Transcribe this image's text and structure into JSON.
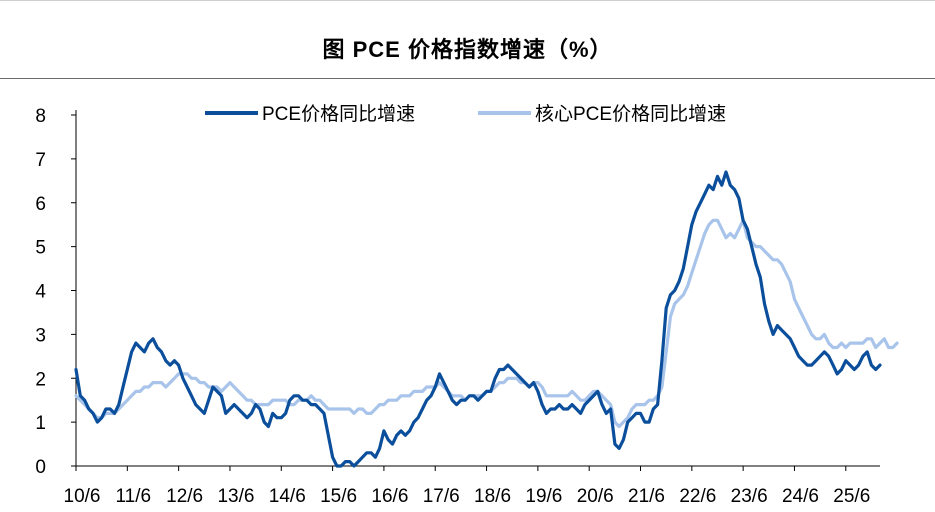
{
  "title": "图   PCE 价格指数增速（%）",
  "chart_data": {
    "type": "line",
    "title": "图   PCE 价格指数增速（%）",
    "xlabel": "",
    "ylabel": "",
    "ylim": [
      0,
      8
    ],
    "yticks": [
      "0",
      "1",
      "2",
      "3",
      "4",
      "5",
      "6",
      "7",
      "8"
    ],
    "xticks": [
      "10/6",
      "11/6",
      "12/6",
      "13/6",
      "14/6",
      "15/6",
      "16/6",
      "17/6",
      "18/6",
      "19/6",
      "20/6",
      "21/6",
      "22/6",
      "23/6",
      "24/6",
      "25/6"
    ],
    "x_start": "2010-06",
    "legend_position": "top-center",
    "grid": false,
    "series": [
      {
        "name": "PCE价格同比增速",
        "color": "#0b4f9c",
        "values": [
          2.2,
          1.6,
          1.5,
          1.3,
          1.2,
          1.0,
          1.1,
          1.3,
          1.3,
          1.2,
          1.4,
          1.8,
          2.2,
          2.6,
          2.8,
          2.7,
          2.6,
          2.8,
          2.9,
          2.7,
          2.6,
          2.4,
          2.3,
          2.4,
          2.3,
          2.0,
          1.8,
          1.6,
          1.4,
          1.3,
          1.2,
          1.5,
          1.8,
          1.7,
          1.6,
          1.2,
          1.3,
          1.4,
          1.3,
          1.2,
          1.1,
          1.2,
          1.4,
          1.3,
          1.0,
          0.9,
          1.2,
          1.1,
          1.1,
          1.2,
          1.5,
          1.6,
          1.6,
          1.5,
          1.5,
          1.4,
          1.4,
          1.3,
          1.2,
          0.7,
          0.2,
          0.0,
          0.0,
          0.1,
          0.1,
          0.0,
          0.1,
          0.2,
          0.3,
          0.3,
          0.2,
          0.4,
          0.8,
          0.6,
          0.5,
          0.7,
          0.8,
          0.7,
          0.8,
          1.0,
          1.1,
          1.3,
          1.5,
          1.6,
          1.8,
          2.1,
          1.9,
          1.7,
          1.5,
          1.4,
          1.5,
          1.5,
          1.6,
          1.6,
          1.5,
          1.6,
          1.7,
          1.7,
          2.0,
          2.2,
          2.2,
          2.3,
          2.2,
          2.1,
          2.0,
          1.9,
          1.8,
          1.9,
          1.7,
          1.4,
          1.2,
          1.3,
          1.3,
          1.4,
          1.3,
          1.3,
          1.4,
          1.3,
          1.2,
          1.4,
          1.5,
          1.6,
          1.7,
          1.4,
          1.2,
          1.3,
          0.5,
          0.4,
          0.6,
          1.0,
          1.1,
          1.2,
          1.2,
          1.0,
          1.0,
          1.3,
          1.4,
          2.4,
          3.6,
          3.9,
          4.0,
          4.2,
          4.5,
          5.0,
          5.5,
          5.8,
          6.0,
          6.2,
          6.4,
          6.3,
          6.6,
          6.4,
          6.7,
          6.4,
          6.3,
          6.1,
          5.6,
          5.4,
          5.0,
          4.6,
          4.3,
          3.7,
          3.3,
          3.0,
          3.2,
          3.1,
          3.0,
          2.9,
          2.7,
          2.5,
          2.4,
          2.3,
          2.3,
          2.4,
          2.5,
          2.6,
          2.5,
          2.3,
          2.1,
          2.2,
          2.4,
          2.3,
          2.2,
          2.3,
          2.5,
          2.6,
          2.3,
          2.2,
          2.3
        ]
      },
      {
        "name": "核心PCE价格同比增速",
        "color": "#a9c4ea",
        "values": [
          1.6,
          1.5,
          1.4,
          1.3,
          1.2,
          1.1,
          1.1,
          1.2,
          1.2,
          1.2,
          1.3,
          1.4,
          1.5,
          1.6,
          1.7,
          1.7,
          1.8,
          1.8,
          1.9,
          1.9,
          1.9,
          1.8,
          1.9,
          2.0,
          2.1,
          2.1,
          2.1,
          2.0,
          2.0,
          1.9,
          1.9,
          1.8,
          1.8,
          1.8,
          1.7,
          1.8,
          1.9,
          1.8,
          1.7,
          1.6,
          1.5,
          1.5,
          1.4,
          1.4,
          1.4,
          1.4,
          1.5,
          1.5,
          1.5,
          1.5,
          1.4,
          1.4,
          1.5,
          1.5,
          1.5,
          1.6,
          1.5,
          1.5,
          1.4,
          1.3,
          1.3,
          1.3,
          1.3,
          1.3,
          1.3,
          1.2,
          1.3,
          1.3,
          1.2,
          1.2,
          1.3,
          1.4,
          1.4,
          1.5,
          1.5,
          1.5,
          1.6,
          1.6,
          1.6,
          1.7,
          1.7,
          1.7,
          1.8,
          1.8,
          1.8,
          1.9,
          1.8,
          1.7,
          1.6,
          1.6,
          1.6,
          1.5,
          1.6,
          1.6,
          1.6,
          1.6,
          1.7,
          1.7,
          1.8,
          1.9,
          1.9,
          2.0,
          2.0,
          2.0,
          1.9,
          1.9,
          1.8,
          1.9,
          1.9,
          1.8,
          1.6,
          1.6,
          1.6,
          1.6,
          1.6,
          1.6,
          1.7,
          1.6,
          1.5,
          1.5,
          1.6,
          1.7,
          1.7,
          1.6,
          1.5,
          1.4,
          1.0,
          0.9,
          1.0,
          1.1,
          1.3,
          1.4,
          1.4,
          1.4,
          1.5,
          1.5,
          1.6,
          1.8,
          2.6,
          3.4,
          3.7,
          3.8,
          3.9,
          4.1,
          4.4,
          4.7,
          5.0,
          5.3,
          5.5,
          5.6,
          5.6,
          5.4,
          5.2,
          5.3,
          5.2,
          5.4,
          5.6,
          5.2,
          5.1,
          5.0,
          5.0,
          4.9,
          4.8,
          4.7,
          4.7,
          4.6,
          4.4,
          4.2,
          3.8,
          3.6,
          3.4,
          3.2,
          3.0,
          2.9,
          2.9,
          3.0,
          2.8,
          2.7,
          2.7,
          2.8,
          2.7,
          2.8,
          2.8,
          2.8,
          2.8,
          2.9,
          2.9,
          2.7,
          2.8,
          2.9,
          2.7,
          2.7,
          2.8
        ]
      }
    ]
  }
}
